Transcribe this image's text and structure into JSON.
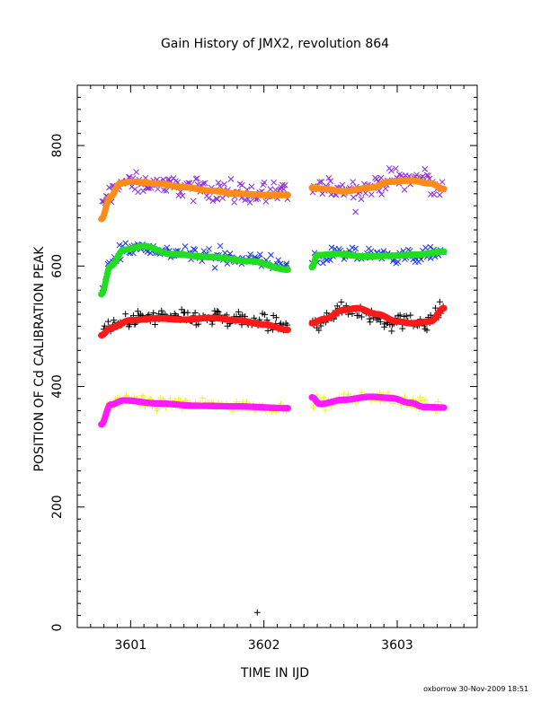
{
  "chart_data": {
    "type": "scatter",
    "title": "Gain History of JMX2, revolution 864",
    "xlabel": "TIME IN IJD",
    "ylabel": "POSITION OF Cd CALIBRATION PEAK",
    "xlim": [
      3600.6,
      3603.6
    ],
    "ylim": [
      0,
      900
    ],
    "xticks": [
      3601,
      3602,
      3603
    ],
    "yticks": [
      0,
      200,
      400,
      600,
      800
    ],
    "grid": false,
    "legend": "none",
    "series": [
      {
        "marker": "x",
        "color": "#8a2be2",
        "scatter_spread": 22,
        "segments": [
          {
            "x": [
              3600.78,
              3600.85,
              3600.92,
              3601.0,
              3601.2,
              3601.4,
              3601.6,
              3601.8,
              3602.0,
              3602.18
            ],
            "y": [
              700,
              720,
              740,
              738,
              737,
              733,
              727,
              722,
              720,
              718
            ]
          },
          {
            "x": [
              3602.36,
              3602.45,
              3602.6,
              3602.8,
              3603.0,
              3603.15,
              3603.35
            ],
            "y": [
              730,
              728,
              726,
              730,
              745,
              745,
              728
            ]
          }
        ]
      },
      {
        "marker": "line",
        "color": "#ff8c1a",
        "segments": [
          {
            "x": [
              3600.78,
              3600.85,
              3600.92,
              3601.0,
              3601.2,
              3601.4,
              3601.6,
              3601.8,
              3602.0,
              3602.18
            ],
            "y": [
              678,
              715,
              737,
              740,
              737,
              731,
              725,
              720,
              718,
              718
            ]
          },
          {
            "x": [
              3602.36,
              3602.45,
              3602.6,
              3602.8,
              3602.95,
              3603.1,
              3603.25,
              3603.35
            ],
            "y": [
              730,
              728,
              724,
              730,
              740,
              742,
              737,
              728
            ]
          }
        ]
      },
      {
        "marker": "x",
        "color": "#1a33e6",
        "scatter_spread": 15,
        "segments": [
          {
            "x": [
              3600.78,
              3600.85,
              3600.95,
              3601.1,
              3601.3,
              3601.6,
              3601.9,
              3602.18
            ],
            "y": [
              560,
              605,
              628,
              632,
              622,
              615,
              610,
              598
            ]
          },
          {
            "x": [
              3602.36,
              3602.5,
              3602.7,
              3602.9,
              3603.1,
              3603.35
            ],
            "y": [
              610,
              618,
              618,
              617,
              616,
              624
            ]
          }
        ]
      },
      {
        "marker": "line",
        "color": "#22dd22",
        "segments": [
          {
            "x": [
              3600.78,
              3600.85,
              3600.95,
              3601.1,
              3601.3,
              3601.6,
              3601.9,
              3602.18
            ],
            "y": [
              553,
              600,
              627,
              633,
              620,
              615,
              608,
              594
            ]
          },
          {
            "x": [
              3602.36,
              3602.4,
              3602.55,
              3602.75,
              3602.95,
              3603.15,
              3603.35
            ],
            "y": [
              598,
              618,
              620,
              616,
              617,
              619,
              624
            ]
          }
        ]
      },
      {
        "marker": "+",
        "color": "#000000",
        "scatter_spread": 20,
        "segments": [
          {
            "x": [
              3600.78,
              3600.85,
              3601.0,
              3601.2,
              3601.4,
              3601.6,
              3601.8,
              3602.0,
              3602.18
            ],
            "y": [
              485,
              498,
              510,
              515,
              512,
              514,
              510,
              505,
              495
            ]
          },
          {
            "x": [
              3602.36,
              3602.5,
              3602.65,
              3602.8,
              3602.95,
              3603.1,
              3603.25,
              3603.35
            ],
            "y": [
              505,
              520,
              530,
              520,
              508,
              505,
              510,
              530
            ]
          }
        ]
      },
      {
        "marker": "line",
        "color": "#ff1a1a",
        "segments": [
          {
            "x": [
              3600.78,
              3600.85,
              3601.0,
              3601.2,
              3601.4,
              3601.6,
              3601.8,
              3602.0,
              3602.18
            ],
            "y": [
              485,
              497,
              510,
              513,
              511,
              514,
              510,
              503,
              494
            ]
          },
          {
            "x": [
              3602.36,
              3602.45,
              3602.6,
              3602.7,
              3602.85,
              3603.0,
              3603.1,
              3603.25,
              3603.35
            ],
            "y": [
              505,
              512,
              527,
              530,
              520,
              508,
              505,
              508,
              530
            ]
          }
        ]
      },
      {
        "marker": "+",
        "color": "#f2f21a",
        "scatter_spread": 12,
        "segments": [
          {
            "x": [
              3600.78,
              3600.85,
              3600.95,
              3601.2,
              3601.5,
              3601.8,
              3602.18
            ],
            "y": [
              350,
              370,
              378,
              373,
              370,
              368,
              365
            ]
          },
          {
            "x": [
              3602.36,
              3602.5,
              3602.7,
              3602.9,
              3603.1,
              3603.25,
              3603.35
            ],
            "y": [
              376,
              373,
              382,
              384,
              372,
              368,
              370
            ]
          }
        ]
      },
      {
        "marker": "line",
        "color": "#ff1aff",
        "segments": [
          {
            "x": [
              3600.78,
              3600.85,
              3600.95,
              3601.2,
              3601.5,
              3601.8,
              3602.18
            ],
            "y": [
              337,
              370,
              377,
              372,
              368,
              367,
              364
            ]
          },
          {
            "x": [
              3602.36,
              3602.42,
              3602.6,
              3602.8,
              3602.95,
              3603.1,
              3603.2,
              3603.35
            ],
            "y": [
              382,
              371,
              378,
              383,
              381,
              373,
              366,
              365
            ]
          }
        ]
      },
      {
        "marker": "+",
        "color": "#000000",
        "segments": [
          {
            "x": [
              3601.95
            ],
            "y": [
              25
            ]
          }
        ]
      }
    ]
  },
  "footer_stamp": "oxborrow 30-Nov-2009 18:51"
}
